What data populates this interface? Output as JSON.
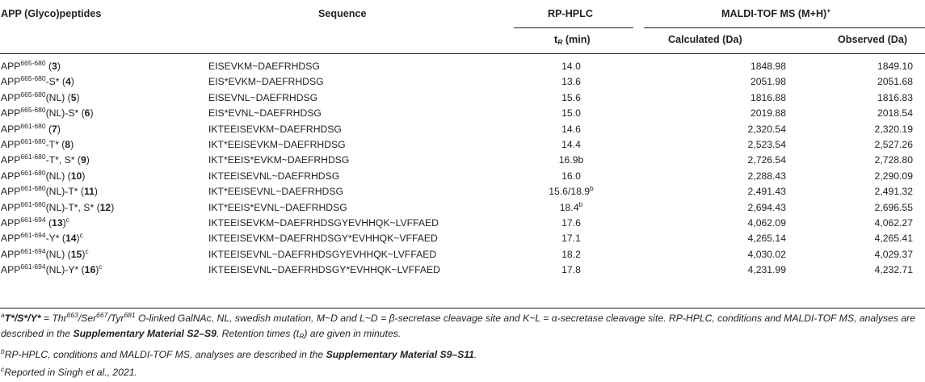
{
  "headers": {
    "name": "APP (Glyco)peptides",
    "sequence": "Sequence",
    "rphplc": "RP-HPLC",
    "rt": "t",
    "rt_sub": "R",
    "rt_unit": " (min)",
    "maldi": "MALDI-TOF MS (M+H)",
    "maldi_sup": "+",
    "calc": "Calculated (Da)",
    "obs": "Observed (Da)"
  },
  "rows": [
    {
      "base": "APP",
      "range": "665-680",
      "suffix": " (",
      "num": "3",
      "close": ")",
      "rsup": "",
      "seq": "EISEVKM~DAEFRHDSG",
      "rt": "14.0",
      "rtsup": "",
      "calc": "1848.98",
      "obs": "1849.10"
    },
    {
      "base": "APP",
      "range": "665-680",
      "suffix": "-S* (",
      "num": "4",
      "close": ")",
      "rsup": "",
      "seq": "EIS*EVKM~DAEFRHDSG",
      "rt": "13.6",
      "rtsup": "",
      "calc": "2051.98",
      "obs": "2051.68"
    },
    {
      "base": "APP",
      "range": "665-680",
      "suffix": "(NL) (",
      "num": "5",
      "close": ")",
      "rsup": "",
      "seq": "EISEVNL~DAEFRHDSG",
      "rt": "15.6",
      "rtsup": "",
      "calc": "1816.88",
      "obs": "1816.83"
    },
    {
      "base": "APP",
      "range": "665-680",
      "suffix": "(NL)-S* (",
      "num": "6",
      "close": ")",
      "rsup": "",
      "seq": "EIS*EVNL~DAEFRHDSG",
      "rt": "15.0",
      "rtsup": "",
      "calc": "2019.88",
      "obs": "2018.54"
    },
    {
      "base": "APP",
      "range": "661-680",
      "suffix": " (",
      "num": "7",
      "close": ")",
      "rsup": "",
      "seq": "IKTEEISEVKM~DAEFRHDSG",
      "rt": "14.6",
      "rtsup": "",
      "calc": "2,320.54",
      "obs": "2,320.19"
    },
    {
      "base": "APP",
      "range": "661-680",
      "suffix": "-T* (",
      "num": "8",
      "close": ")",
      "rsup": "",
      "seq": "IKT*EEISEVKM~DAEFRHDSG",
      "rt": "14.4",
      "rtsup": "",
      "calc": "2,523.54",
      "obs": "2,527.26"
    },
    {
      "base": "APP",
      "range": "661-680",
      "suffix": "-T*, S* (",
      "num": "9",
      "close": ")",
      "rsup": "",
      "seq": "IKT*EEIS*EVKM~DAEFRHDSG",
      "rt": "16.9b",
      "rtsup": "",
      "calc": "2,726.54",
      "obs": "2,728.80"
    },
    {
      "base": "APP",
      "range": "661-680",
      "suffix": "(NL) (",
      "num": "10",
      "close": ")",
      "rsup": "",
      "seq": "IKTEEISEVNL~DAEFRHDSG",
      "rt": "16.0",
      "rtsup": "",
      "calc": "2,288.43",
      "obs": "2,290.09"
    },
    {
      "base": "APP",
      "range": "661-680",
      "suffix": "(NL)-T* (",
      "num": "11",
      "close": ")",
      "rsup": "",
      "seq": "IKT*EEISEVNL~DAEFRHDSG",
      "rt": "15.6/18.9",
      "rtsup": "b",
      "calc": "2,491.43",
      "obs": "2,491.32"
    },
    {
      "base": "APP",
      "range": "661-680",
      "suffix": "(NL)-T*, S* (",
      "num": "12",
      "close": ")",
      "rsup": "",
      "seq": "IKT*EEIS*EVNL~DAEFRHDSG",
      "rt": "18.4",
      "rtsup": "b",
      "calc": "2,694.43",
      "obs": "2,696.55"
    },
    {
      "base": "APP",
      "range": "661-694",
      "suffix": " (",
      "num": "13",
      "close": ")",
      "rsup": "c",
      "seq": "IKTEEISEVKM~DAEFRHDSGYEVHHQK~LVFFAED",
      "rt": "17.6",
      "rtsup": "",
      "calc": "4,062.09",
      "obs": "4,062.27"
    },
    {
      "base": "APP",
      "range": "661-694",
      "suffix": "-Y* (",
      "num": "14",
      "close": ")",
      "rsup": "c",
      "seq": "IKTEEISEVKM~DAEFRHDSGY*EVHHQK~VFFAED",
      "rt": "17.1",
      "rtsup": "",
      "calc": "4,265.14",
      "obs": "4,265.41"
    },
    {
      "base": "APP",
      "range": "661-694",
      "suffix": "(NL) (",
      "num": "15",
      "close": ")",
      "rsup": "c",
      "seq": "IKTEEISEVNL~DAEFRHDSGYEVHHQK~LVFFAED",
      "rt": "18.2",
      "rtsup": "",
      "calc": "4,030.02",
      "obs": "4,029.37"
    },
    {
      "base": "APP",
      "range": "661-694",
      "suffix": "(NL)-Y* (",
      "num": "16",
      "close": ")",
      "rsup": "c",
      "seq": "IKTEEISEVNL~DAEFRHDSGY*EVHHQK~LVFFAED",
      "rt": "17.8",
      "rtsup": "",
      "calc": "4,231.99",
      "obs": "4,232.71"
    }
  ],
  "footnotes": {
    "a": {
      "mark": "a",
      "bold_part": "T*/S*/Y*",
      "p1": " = Thr",
      "s1": "663",
      "p2": "/Ser",
      "s2": "667",
      "p3": "/Tyr",
      "s3": "681",
      "p4": " O-linked GalNAc, NL, swedish mutation, M~D and L~D = β-secretase cleavage site and K~L = α-secretase cleavage site. RP-HPLC, conditions and MALDI-TOF MS, analyses are described in the ",
      "bold2": "Supplementary Material S2–S9",
      "p5": ". Retention times (t",
      "sub": "R",
      "p6": ") are given in minutes."
    },
    "b": {
      "mark": "b",
      "p1": "RP-HPLC, conditions and MALDI-TOF MS, analyses are described in the ",
      "bold": "Supplementary Material S9–S11",
      "p2": "."
    },
    "c": {
      "mark": "c",
      "text": "Reported in Singh et al., 2021."
    }
  }
}
